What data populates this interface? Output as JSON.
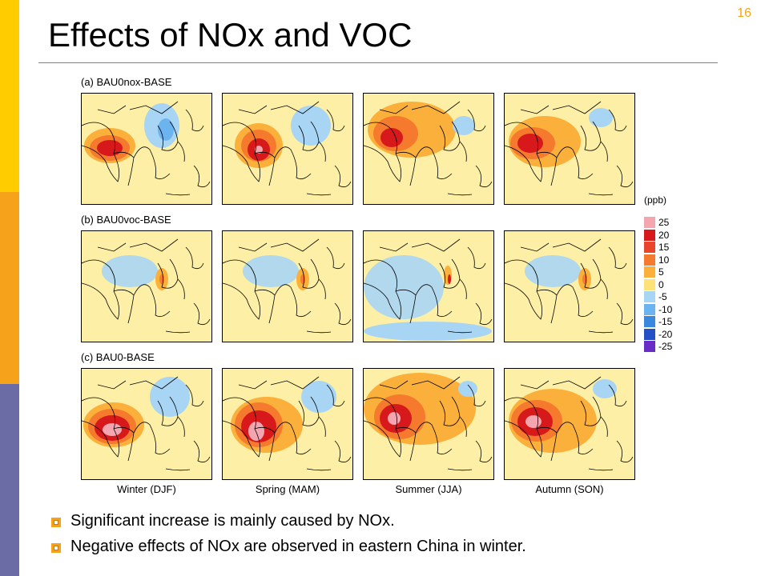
{
  "slide": {
    "title": "Effects of NOx and VOC",
    "number": "16"
  },
  "figure": {
    "rows": [
      {
        "label": "(a) BAU0nox-BASE",
        "maps": [
          {
            "season": "Winter (DJF)",
            "pattern": "nox-winter"
          },
          {
            "season": "Spring (MAM)",
            "pattern": "nox-spring"
          },
          {
            "season": "Summer (JJA)",
            "pattern": "nox-summer"
          },
          {
            "season": "Autumn (SON)",
            "pattern": "nox-autumn"
          }
        ]
      },
      {
        "label": "(b) BAU0voc-BASE",
        "maps": [
          {
            "season": "Winter (DJF)",
            "pattern": "voc"
          },
          {
            "season": "Spring (MAM)",
            "pattern": "voc"
          },
          {
            "season": "Summer (JJA)",
            "pattern": "voc-summer"
          },
          {
            "season": "Autumn (SON)",
            "pattern": "voc"
          }
        ]
      },
      {
        "label": "(c) BAU0-BASE",
        "maps": [
          {
            "season": "Winter (DJF)",
            "pattern": "all-winter"
          },
          {
            "season": "Spring (MAM)",
            "pattern": "all-spring"
          },
          {
            "season": "Summer (JJA)",
            "pattern": "all-summer"
          },
          {
            "season": "Autumn (SON)",
            "pattern": "all-autumn"
          }
        ]
      }
    ],
    "season_labels": [
      "Winter (DJF)",
      "Spring (MAM)",
      "Summer (JJA)",
      "Autumn (SON)"
    ],
    "colorbar": {
      "unit": "(ppb)",
      "levels": [
        {
          "label": "25",
          "color": "#f4a6b0"
        },
        {
          "label": "20",
          "color": "#d7191c"
        },
        {
          "label": "15",
          "color": "#e8452b"
        },
        {
          "label": "10",
          "color": "#f57a2e"
        },
        {
          "label": "5",
          "color": "#fbb03b"
        },
        {
          "label": "0",
          "color": "#fde27a"
        },
        {
          "label": "-5",
          "color": "#a9d5f5"
        },
        {
          "label": "-10",
          "color": "#6cb4ef"
        },
        {
          "label": "-15",
          "color": "#3a87df"
        },
        {
          "label": "-20",
          "color": "#2350c4"
        },
        {
          "label": "-25",
          "color": "#6a2cc7"
        }
      ]
    }
  },
  "bullets": [
    "Significant increase is mainly caused by NOx.",
    "Negative effects of NOx are observed in eastern China in winter."
  ]
}
